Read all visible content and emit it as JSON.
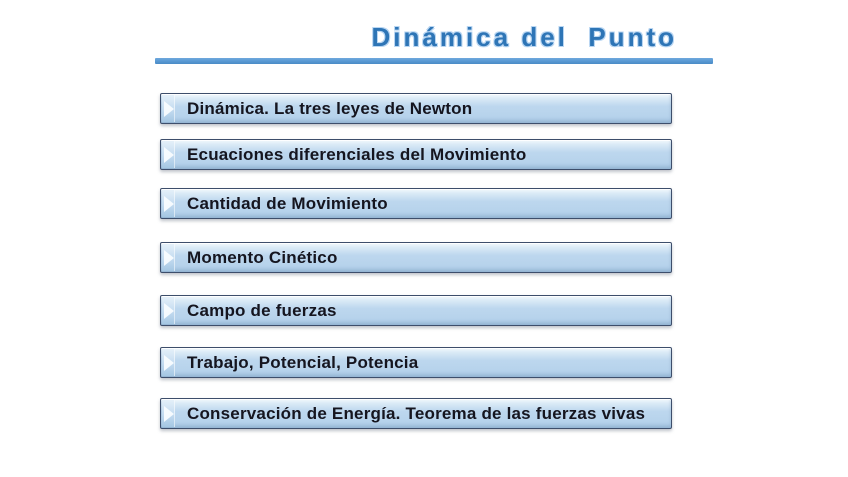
{
  "header": {
    "title": "Dinámica del  Punto"
  },
  "menu": {
    "items": [
      {
        "label": "Dinámica. La tres leyes de Newton"
      },
      {
        "label": "Ecuaciones diferenciales del Movimiento"
      },
      {
        "label": "Cantidad de Movimiento"
      },
      {
        "label": "Momento Cinético"
      },
      {
        "label": "Campo de fuerzas"
      },
      {
        "label": "Trabajo, Potencial, Potencia"
      },
      {
        "label": "Conservación de Energía. Teorema de las fuerzas vivas"
      }
    ]
  },
  "colors": {
    "title_blue": "#2E75B6",
    "title_halo": "#B9D6F2",
    "rule_blue": "#5B9BD5",
    "bar_fill": "#BDD7EE",
    "bar_fill_light": "#EFF6FC",
    "bar_fill_dark": "#A8C8E4",
    "bar_border": "#3D4E6B",
    "bar_text": "#15151F",
    "background": "#FFFFFF"
  }
}
